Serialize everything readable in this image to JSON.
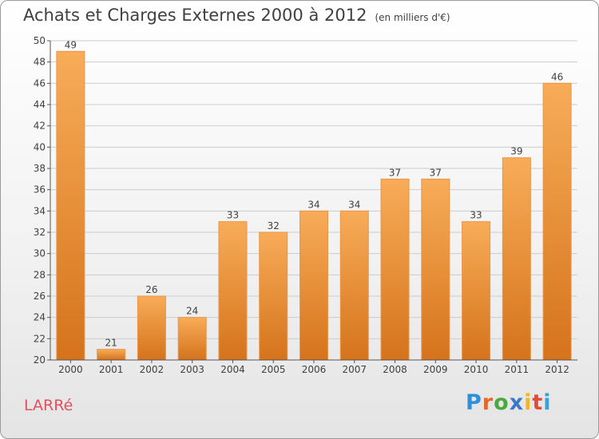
{
  "title": "Achats et Charges Externes 2000 à 2012",
  "subtitle": "(en milliers d'€)",
  "commune": "LARRé",
  "logo": {
    "letters": [
      "P",
      "r",
      "o",
      "x",
      "i",
      "t",
      "i"
    ],
    "colors": [
      "#2f8fd8",
      "#e2692a",
      "#4aa83c",
      "#3a78c8",
      "#f0b62a",
      "#e24a3a",
      "#3aa0d8"
    ]
  },
  "colors": {
    "bar_light": "#f8ac58",
    "bar_dark": "#d5731c",
    "axis": "#555555",
    "grid": "#cccccc"
  },
  "chart_data": {
    "type": "bar",
    "categories": [
      "2000",
      "2001",
      "2002",
      "2003",
      "2004",
      "2005",
      "2006",
      "2007",
      "2008",
      "2009",
      "2010",
      "2011",
      "2012"
    ],
    "values": [
      49,
      21,
      26,
      24,
      33,
      32,
      34,
      34,
      37,
      37,
      33,
      39,
      46
    ],
    "ylim": [
      20,
      50
    ],
    "yticks": [
      20,
      22,
      24,
      26,
      28,
      30,
      32,
      34,
      36,
      38,
      40,
      42,
      44,
      46,
      48,
      50
    ],
    "grid": true
  }
}
